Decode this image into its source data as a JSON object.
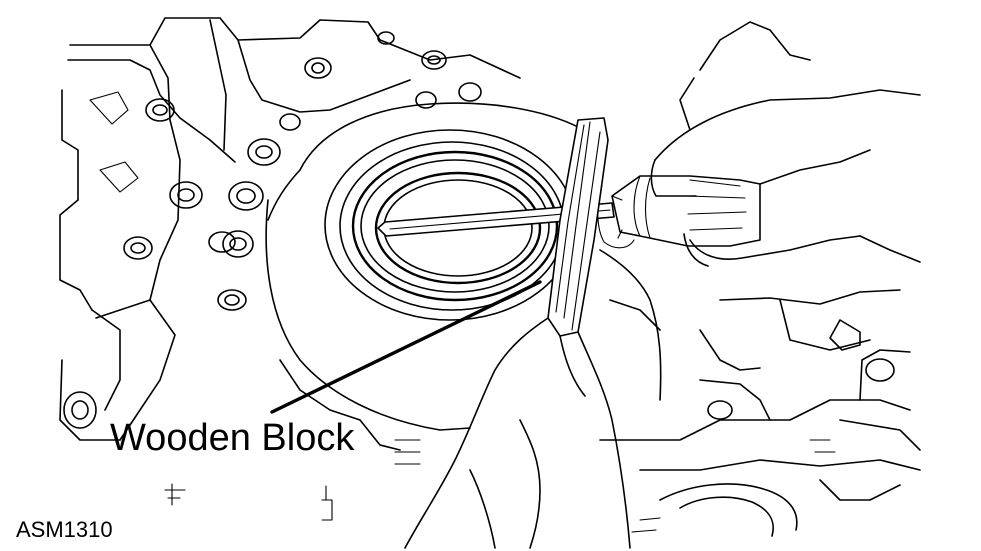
{
  "callout": {
    "label": "Wooden Block"
  },
  "figure": {
    "code": "ASM1310"
  },
  "colors": {
    "ink": "#000000",
    "background": "#ffffff"
  }
}
